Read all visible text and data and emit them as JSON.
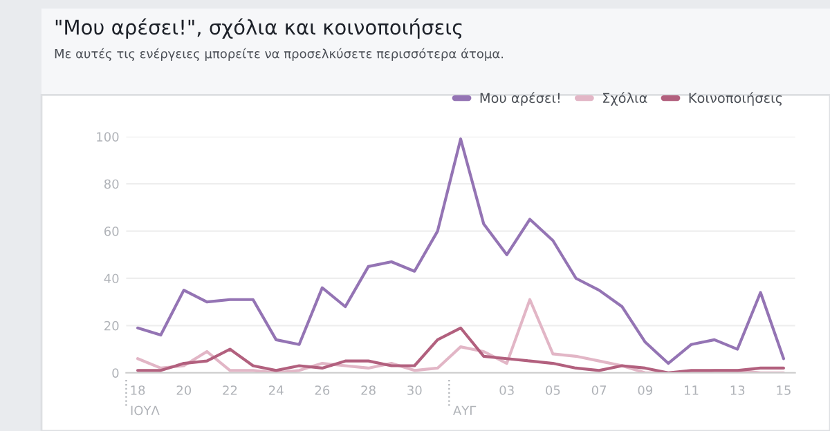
{
  "chart_data": {
    "type": "line",
    "title": "\"Μου αρέσει!\", σχόλια και κοινοποιήσεις",
    "subtitle": "Με αυτές τις ενέργειες μπορείτε να προσελκύσετε περισσότερα άτομα.",
    "categories": [
      "18",
      null,
      "20",
      null,
      "22",
      null,
      "24",
      null,
      "26",
      null,
      "28",
      null,
      "30",
      null,
      null,
      null,
      "03",
      null,
      "05",
      null,
      "07",
      null,
      "09",
      null,
      "11",
      null,
      "13",
      null,
      "15"
    ],
    "annotations": [
      "ΙΟΥΛ",
      "ΑΥΓ"
    ],
    "series": [
      {
        "name": "Μου αρέσει!",
        "color": "#9474b4",
        "values": [
          19,
          16,
          35,
          30,
          31,
          31,
          14,
          12,
          36,
          28,
          45,
          47,
          43,
          60,
          99,
          63,
          50,
          65,
          56,
          40,
          35,
          28,
          13,
          4,
          12,
          14,
          10,
          34,
          6
        ]
      },
      {
        "name": "Σχόλια",
        "color": "#e2b6c6",
        "values": [
          6,
          2,
          3,
          9,
          1,
          1,
          0,
          1,
          4,
          3,
          2,
          4,
          1,
          2,
          11,
          9,
          4,
          31,
          8,
          7,
          5,
          3,
          0,
          0,
          0,
          1,
          1,
          0,
          0
        ]
      },
      {
        "name": "Κοινοποιήσεις",
        "color": "#b2607e",
        "values": [
          1,
          1,
          4,
          5,
          10,
          3,
          1,
          3,
          2,
          5,
          5,
          3,
          3,
          14,
          19,
          7,
          6,
          5,
          4,
          2,
          1,
          3,
          2,
          0,
          1,
          1,
          1,
          2,
          2
        ]
      }
    ],
    "ylim": [
      0,
      100
    ],
    "yticks": [
      0,
      20,
      40,
      60,
      80,
      100
    ],
    "grid": "y",
    "legend": "top right",
    "marker": "none",
    "line_style": "solid"
  }
}
